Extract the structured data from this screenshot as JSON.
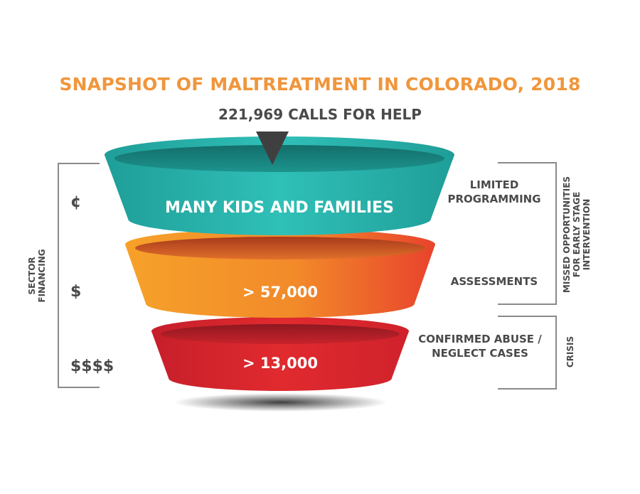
{
  "title": "SNAPSHOT OF MALTREATMENT IN COLORADO, 2018",
  "subtitle": "221,969 CALLS FOR HELP",
  "tiers": [
    {
      "label": "MANY KIDS AND FAMILIES",
      "financing": "¢",
      "side_label": "LIMITED PROGRAMMING",
      "color": "#2ab3ac"
    },
    {
      "label": "> 57,000",
      "financing": "$",
      "side_label": "ASSESSMENTS",
      "color": "#f28a2a"
    },
    {
      "label": "> 13,000",
      "financing": "$$$$",
      "side_label": "CONFIRMED ABUSE / NEGLECT CASES",
      "color": "#e02a2e"
    }
  ],
  "left_bracket_label": "SECTOR FINANCING",
  "right_bracket_top_label": "MISSED OPPORTUNITIES FOR EARLY STAGE INTERVENTION",
  "right_bracket_bottom_label": "CRISIS"
}
